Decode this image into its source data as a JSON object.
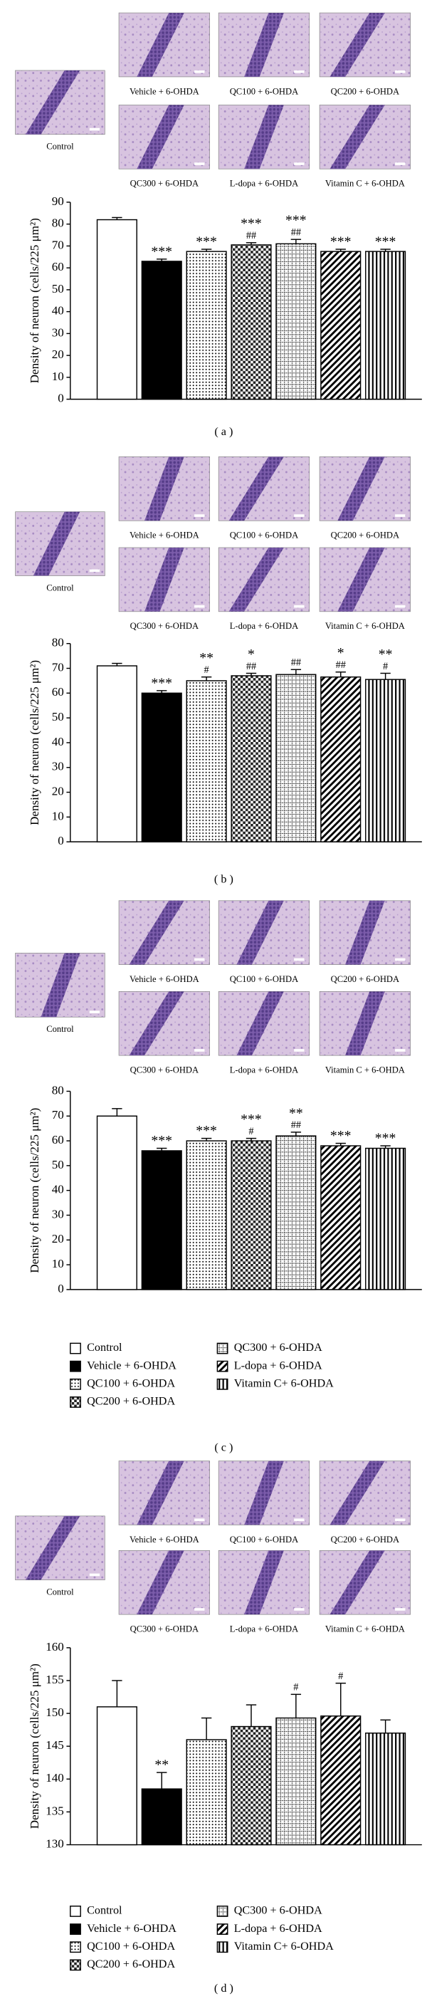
{
  "panels": [
    {
      "label": "( a )",
      "images": [
        "Control",
        "Vehicle + 6-OHDA",
        "QC100 + 6-OHDA",
        "QC200 + 6-OHDA",
        "QC300 + 6-OHDA",
        "L-dopa + 6-OHDA",
        "Vitamin C + 6-OHDA"
      ]
    },
    {
      "label": "( b )",
      "images": [
        "Control",
        "Vehicle + 6-OHDA",
        "QC100 + 6-OHDA",
        "QC200 + 6-OHDA",
        "QC300 + 6-OHDA",
        "L-dopa + 6-OHDA",
        "Vitamin C + 6-OHDA"
      ]
    },
    {
      "label": "( c )",
      "images": [
        "Control",
        "Vehicle + 6-OHDA",
        "QC100 + 6-OHDA",
        "QC200 + 6-OHDA",
        "QC300 + 6-OHDA",
        "L-dopa + 6-OHDA",
        "Vitamin C + 6-OHDA"
      ]
    },
    {
      "label": "( d )",
      "images": [
        "Control",
        "Vehicle + 6-OHDA",
        "QC100 + 6-OHDA",
        "QC200 + 6-OHDA",
        "QC300 + 6-OHDA",
        "L-dopa + 6-OHDA",
        "Vitamin C + 6-OHDA"
      ]
    }
  ],
  "chart_data": [
    {
      "type": "bar",
      "ylabel": "Density of neuron (cells/225 μm²)",
      "values": [
        82,
        63,
        67.5,
        70.5,
        71,
        67.5,
        67.5
      ],
      "errors": [
        1,
        1,
        1,
        1,
        2,
        1,
        1
      ],
      "annotations": [
        [],
        [
          "***"
        ],
        [
          "***"
        ],
        [
          "***",
          "##"
        ],
        [
          "***",
          "##"
        ],
        [
          "***"
        ],
        [
          "***"
        ]
      ],
      "fills": [
        "white",
        "black",
        "dots",
        "checker",
        "grid",
        "diagonal",
        "vstripes"
      ],
      "ylim": [
        0,
        90
      ],
      "yticks": [
        0,
        10,
        20,
        30,
        40,
        50,
        60,
        70,
        80,
        90
      ]
    },
    {
      "type": "bar",
      "ylabel": "Density of neuron (cells/225 μm²)",
      "values": [
        71,
        60,
        65,
        67,
        67.5,
        66.5,
        65.5
      ],
      "errors": [
        1,
        1,
        1.5,
        1,
        2,
        2,
        2.5
      ],
      "annotations": [
        [],
        [
          "***"
        ],
        [
          "**",
          "#"
        ],
        [
          "*",
          "##"
        ],
        [
          "##"
        ],
        [
          "*",
          "##"
        ],
        [
          "**",
          "#"
        ]
      ],
      "fills": [
        "white",
        "black",
        "dots",
        "checker",
        "grid",
        "diagonal",
        "vstripes"
      ],
      "ylim": [
        0,
        80
      ],
      "yticks": [
        0,
        10,
        20,
        30,
        40,
        50,
        60,
        70,
        80
      ]
    },
    {
      "type": "bar",
      "ylabel": "Density of neuron (cells/225 μm²)",
      "values": [
        70,
        56,
        60,
        60,
        62,
        58,
        57
      ],
      "errors": [
        3,
        1,
        1,
        1,
        1.5,
        1,
        1
      ],
      "annotations": [
        [],
        [
          "***"
        ],
        [
          "***"
        ],
        [
          "***",
          "#"
        ],
        [
          "**",
          "##"
        ],
        [
          "***"
        ],
        [
          "***"
        ]
      ],
      "fills": [
        "white",
        "black",
        "dots",
        "checker",
        "grid",
        "diagonal",
        "vstripes"
      ],
      "ylim": [
        0,
        80
      ],
      "yticks": [
        0,
        10,
        20,
        30,
        40,
        50,
        60,
        70,
        80
      ],
      "legend": [
        "Control",
        "Vehicle + 6-OHDA",
        "QC100 + 6-OHDA",
        "QC200 + 6-OHDA",
        "QC300 + 6-OHDA",
        "L-dopa + 6-OHDA",
        "Vitamin C+ 6-OHDA"
      ]
    },
    {
      "type": "bar",
      "ylabel": "Density of neuron (cells/225 μm²)",
      "values": [
        151,
        138.5,
        146,
        148,
        149.3,
        149.6,
        147
      ],
      "errors": [
        4,
        2.5,
        3.3,
        3.3,
        3.6,
        5,
        2
      ],
      "annotations": [
        [],
        [
          "**"
        ],
        [],
        [],
        [
          "#"
        ],
        [
          "#"
        ],
        []
      ],
      "fills": [
        "white",
        "black",
        "dots",
        "checker",
        "grid",
        "diagonal",
        "vstripes"
      ],
      "ylim": [
        130,
        160
      ],
      "yticks": [
        130,
        135,
        140,
        145,
        150,
        155,
        160
      ],
      "legend": [
        "Control",
        "Vehicle + 6-OHDA",
        "QC100 + 6-OHDA",
        "QC200 + 6-OHDA",
        "QC300 + 6-OHDA",
        "L-dopa + 6-OHDA",
        "Vitamin C+ 6-OHDA"
      ]
    }
  ]
}
